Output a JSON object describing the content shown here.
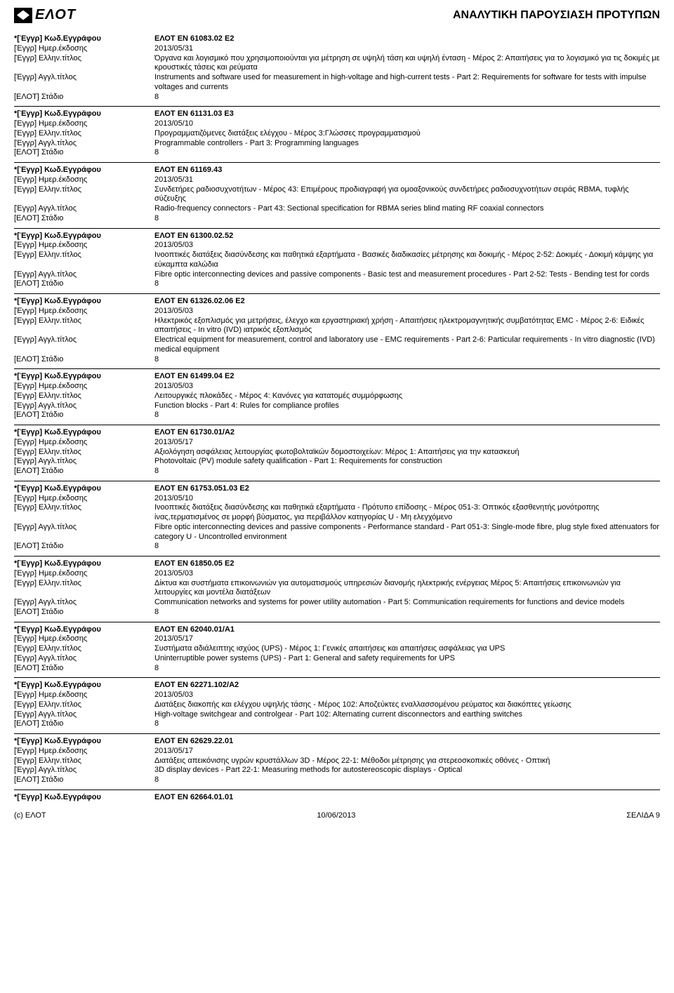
{
  "logo_text": "ΕΛΟΤ",
  "page_title": "ΑΝΑΛΥΤΙΚΗ ΠΑΡΟΥΣΙΑΣΗ ΠΡΟΤΥΠΩΝ",
  "labels": {
    "code": "*[Έγγρ] Κωδ.Εγγράφου",
    "date": "[Έγγρ] Ημερ.έκδοσης",
    "title_el": "[Έγγρ] Ελλην.τίτλος",
    "title_en": "[Έγγρ] Αγγλ.τίτλος",
    "stage": "[ΕΛΟΤ] Στάδιο"
  },
  "entries": [
    {
      "code": "ΕΛΟΤ EN 61083.02 E2",
      "date": "2013/05/31",
      "title_el": "Όργανα και λογισμικό που χρησιμοποιούνται για μέτρηση σε υψηλή τάση και υψηλή ένταση - Μέρος 2: Απαιτήσεις για το λογισμικό για τις δοκιμές με κρουστικές τάσεις και ρεύματα",
      "title_en": "Instruments and software used for measurement in high-voltage and high-current tests - Part 2: Requirements for software for tests with impulse voltages and currents",
      "stage": "8"
    },
    {
      "code": "ΕΛΟΤ EN 61131.03 E3",
      "date": "2013/05/10",
      "title_el": "Προγραμματιζόμενες διατάξεις ελέγχου - Μέρος 3:Γλώσσες προγραμματισμού",
      "title_en": "Programmable controllers - Part 3: Programming languages",
      "stage": "8"
    },
    {
      "code": "ΕΛΟΤ EN 61169.43",
      "date": "2013/05/31",
      "title_el": "Συνδετήρες ραδιοσυχνοτήτων - Μέρος 43: Επιμέρους προδιαγραφή για ομοαξονικούς συνδετήρες ραδιοσυχνοτήτων σειράς RBMA, τυφλής σύζευξης",
      "title_en": "Radio-frequency connectors - Part 43: Sectional specification for RBMA series blind mating RF coaxial connectors",
      "stage": "8"
    },
    {
      "code": "ΕΛΟΤ EN 61300.02.52",
      "date": "2013/05/03",
      "title_el": "Ινοοπτικές διατάξεις διασύνδεσης και παθητικά εξαρτήματα - Βασικές διαδικασίες μέτρησης και δοκιμής - Μέρος 2-52: Δοκιμές - Δοκιμή κάμψης για εύκαμπτα καλώδια",
      "title_en": "Fibre optic interconnecting devices and passive components - Basic test and measurement procedures - Part 2-52: Tests - Bending test for cords",
      "stage": "8"
    },
    {
      "code": "ΕΛΟΤ EN 61326.02.06 E2",
      "date": "2013/05/03",
      "title_el": "Ηλεκτρικός εξοπλισμός για μετρήσεις, έλεγχο και εργαστηριακή χρήση - Απαιτήσεις ηλεκτρομαγνητικής συμβατότητας EMC - Μέρος 2-6: Ειδικές απαιτήσεις - In vitro (IVD) ιατρικός εξοπλισμός",
      "title_en": "Electrical equipment for measurement, control and laboratory use - EMC requirements - Part 2-6: Particular requirements - In vitro diagnostic (IVD) medical equipment",
      "stage": "8"
    },
    {
      "code": "ΕΛΟΤ EN 61499.04 E2",
      "date": "2013/05/03",
      "title_el": "Λειτουργικές πλοκάδες - Μέρος 4: Κανόνες για κατατομές συμμόρφωσης",
      "title_en": "Function blocks - Part 4: Rules for compliance profiles",
      "stage": "8"
    },
    {
      "code": "ΕΛΟΤ EN 61730.01/A2",
      "date": "2013/05/17",
      "title_el": "Αξιολόγηση ασφάλειας λειτουργίας φωτοβολταϊκών δομοστοιχείων: Μέρος 1: Απαιτήσεις για την κατασκευή",
      "title_en": "Photovoltaic (PV) module safety qualification - Part 1: Requirements for construction",
      "stage": "8"
    },
    {
      "code": "ΕΛΟΤ EN 61753.051.03 E2",
      "date": "2013/05/10",
      "title_el": "Ινοοπτικές διατάξεις διασύνδεσης και παθητικά εξαρτήματα - Πρότυπο επίδοσης - Μέρος 051-3: Οπτικός εξασθενητής μονότροπης ίνας,τερματισμένος σε μορφή βύσματος, για περιβάλλον κατηγορίας U - Μη ελεγχόμενο",
      "title_en": "Fibre optic interconnecting devices and passive components - Performance standard - Part 051-3: Single-mode fibre, plug style fixed attenuators for category U - Uncontrolled environment",
      "stage": "8"
    },
    {
      "code": "ΕΛΟΤ EN 61850.05 E2",
      "date": "2013/05/03",
      "title_el": "Δίκτυα και συστήματα επικοινωνιών για αυτοματισμούς  υπηρεσιών διανομής ηλεκτρικής ενέργειας Μέρος 5: Απαιτήσεις επικοινωνιών για λειτουργίες και μοντέλα διατάξεων",
      "title_en": "Communication networks and systems for power utility automation - Part 5: Communication requirements for functions and device models",
      "stage": "8"
    },
    {
      "code": "ΕΛΟΤ EN 62040.01/A1",
      "date": "2013/05/17",
      "title_el": "Συστήματα αδιάλειπτης ισχύος (UPS) - Μέρος 1: Γενικές απαιτήσεις και απαιτήσεις ασφάλειας για UPS",
      "title_en": "Uninterruptible power systems (UPS) - Part 1: General and safety requirements for UPS",
      "stage": "8"
    },
    {
      "code": "ΕΛΟΤ EN 62271.102/A2",
      "date": "2013/05/03",
      "title_el": "Διατάξεις διακοπής και ελέγχου υψηλής τάσης - Μέρος 102: Αποζεύκτες εναλλασσομένου ρεύματος και διακόπτες γείωσης",
      "title_en": "High-voltage switchgear and controlgear - Part 102: Alternating current disconnectors and earthing switches",
      "stage": "8"
    },
    {
      "code": "ΕΛΟΤ EN 62629.22.01",
      "date": "2013/05/17",
      "title_el": "Διατάξεις απεικόνισης υγρών κρυστάλλων 3D - Μέρος 22-1: Μέθοδοι μέτρησης για στερεοσκοπικές οθόνες - Οπτική",
      "title_en": "3D display devices - Part 22-1: Measuring methods for autostereoscopic displays - Optical",
      "stage": "8"
    },
    {
      "code": "ΕΛΟΤ EN 62664.01.01",
      "partial": true
    }
  ],
  "footer": {
    "left": "(c) ΕΛΟΤ",
    "center": "10/06/2013",
    "right": "ΣΕΛΙΔΑ 9"
  }
}
